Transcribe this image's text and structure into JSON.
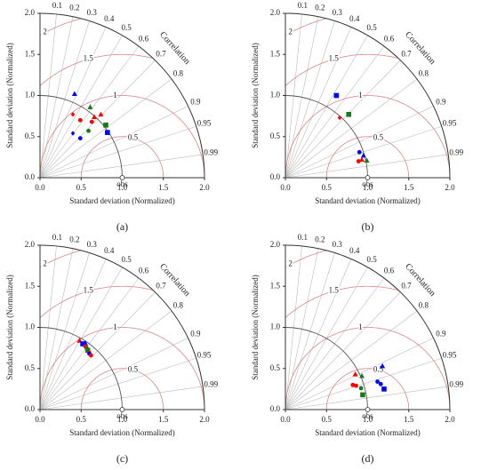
{
  "chart_data": [
    {
      "type": "taylor",
      "caption": "(a)",
      "xlabel": "Standard deviation (Normalized)",
      "ylabel": "Standard deviation (Normalized)",
      "xlim": [
        0,
        2
      ],
      "ylim": [
        0,
        2
      ],
      "xticks": [
        {
          "value": 0,
          "label": "0.0"
        },
        0.5,
        {
          "value": 1,
          "label": "1.0"
        },
        1.5,
        {
          "value": 2,
          "label": "2.0"
        }
      ],
      "yticks": [
        {
          "value": 0,
          "label": "0.0"
        },
        0.5,
        {
          "value": 1,
          "label": "1.0"
        },
        1.5,
        {
          "value": 2,
          "label": "2.0"
        }
      ],
      "correlation_label": "Correlation",
      "correlations": [
        0.1,
        0.2,
        0.3,
        0.4,
        0.5,
        0.6,
        0.7,
        0.8,
        0.9,
        0.95,
        0.99
      ],
      "rms_levels": [
        0.5,
        1,
        1.5,
        2
      ],
      "reference": {
        "value": 1,
        "label": "obs"
      },
      "points": [
        {
          "x": 0.42,
          "y": 1.02,
          "marker": "triangle",
          "color": "#0000ff"
        },
        {
          "x": 0.61,
          "y": 0.86,
          "marker": "triangle",
          "color": "#1a7a1a"
        },
        {
          "x": 0.4,
          "y": 0.77,
          "marker": "diamond",
          "color": "#ff0000"
        },
        {
          "x": 0.49,
          "y": 0.7,
          "marker": "circle",
          "color": "#ff0000"
        },
        {
          "x": 0.66,
          "y": 0.74,
          "marker": "triangle",
          "color": "#ff0000"
        },
        {
          "x": 0.74,
          "y": 0.77,
          "marker": "triangle",
          "color": "#ff0000"
        },
        {
          "x": 0.63,
          "y": 0.68,
          "marker": "circle",
          "color": "#ff0000"
        },
        {
          "x": 0.8,
          "y": 0.64,
          "marker": "square",
          "color": "#1a7a1a"
        },
        {
          "x": 0.82,
          "y": 0.55,
          "marker": "square",
          "color": "#0000ff"
        },
        {
          "x": 0.59,
          "y": 0.57,
          "marker": "circle",
          "color": "#1a7a1a"
        },
        {
          "x": 0.4,
          "y": 0.54,
          "marker": "diamond",
          "color": "#0000ff"
        },
        {
          "x": 0.49,
          "y": 0.48,
          "marker": "circle",
          "color": "#0000ff"
        }
      ]
    },
    {
      "type": "taylor",
      "caption": "(b)",
      "xlabel": "Standard deviation (Normalized)",
      "ylabel": "Standard deviation (Normalized)",
      "xlim": [
        0,
        2
      ],
      "ylim": [
        0,
        2
      ],
      "xticks": [
        {
          "value": 0,
          "label": "0.0"
        },
        0.5,
        {
          "value": 1,
          "label": "1.0"
        },
        1.5,
        {
          "value": 2,
          "label": "2.0"
        }
      ],
      "yticks": [
        {
          "value": 0,
          "label": "0.0"
        },
        0.5,
        {
          "value": 1,
          "label": "1.0"
        },
        1.5,
        {
          "value": 2,
          "label": "2.0"
        }
      ],
      "correlation_label": "Correlation",
      "correlations": [
        0.1,
        0.2,
        0.3,
        0.4,
        0.5,
        0.6,
        0.7,
        0.8,
        0.9,
        0.95,
        0.99
      ],
      "rms_levels": [
        0.5,
        1,
        1.5,
        2
      ],
      "reference": {
        "value": 1,
        "label": "obs"
      },
      "points": [
        {
          "x": 0.62,
          "y": 1.0,
          "marker": "square",
          "color": "#0000ff"
        },
        {
          "x": 0.66,
          "y": 0.73,
          "marker": "diamond",
          "color": "#ff0000"
        },
        {
          "x": 0.77,
          "y": 0.77,
          "marker": "square",
          "color": "#1a7a1a"
        },
        {
          "x": 0.9,
          "y": 0.31,
          "marker": "circle",
          "color": "#0000ff"
        },
        {
          "x": 0.95,
          "y": 0.27,
          "marker": "triangle",
          "color": "#0000ff"
        },
        {
          "x": 0.99,
          "y": 0.21,
          "marker": "triangle",
          "color": "#1a7a1a"
        },
        {
          "x": 0.89,
          "y": 0.2,
          "marker": "circle",
          "color": "#ff0000"
        },
        {
          "x": 0.93,
          "y": 0.22,
          "marker": "triangle",
          "color": "#ff0000"
        }
      ]
    },
    {
      "type": "taylor",
      "caption": "(c)",
      "xlabel": "Standard deviation (Normalized)",
      "ylabel": "Standard deviation (Normalized)",
      "xlim": [
        0,
        2
      ],
      "ylim": [
        0,
        2
      ],
      "xticks": [
        {
          "value": 0,
          "label": "0.0"
        },
        0.5,
        {
          "value": 1,
          "label": "1.0"
        },
        1.5,
        {
          "value": 2,
          "label": "2.0"
        }
      ],
      "yticks": [
        {
          "value": 0,
          "label": "0.0"
        },
        0.5,
        {
          "value": 1,
          "label": "1.0"
        },
        1.5,
        {
          "value": 2,
          "label": "2.0"
        }
      ],
      "correlation_label": "Correlation",
      "correlations": [
        0.1,
        0.2,
        0.3,
        0.4,
        0.5,
        0.6,
        0.7,
        0.8,
        0.9,
        0.95,
        0.99
      ],
      "rms_levels": [
        0.5,
        1,
        1.5,
        2
      ],
      "reference": {
        "value": 1,
        "label": "obs"
      },
      "points": [
        {
          "x": 0.48,
          "y": 0.84,
          "marker": "triangle",
          "color": "#ff0000"
        },
        {
          "x": 0.52,
          "y": 0.8,
          "marker": "square",
          "color": "#0000ff"
        },
        {
          "x": 0.55,
          "y": 0.81,
          "marker": "triangle",
          "color": "#0000ff"
        },
        {
          "x": 0.55,
          "y": 0.77,
          "marker": "circle",
          "color": "#ff0000"
        },
        {
          "x": 0.57,
          "y": 0.76,
          "marker": "triangle",
          "color": "#1a7a1a"
        },
        {
          "x": 0.58,
          "y": 0.72,
          "marker": "square",
          "color": "#1a7a1a"
        },
        {
          "x": 0.6,
          "y": 0.7,
          "marker": "diamond",
          "color": "#ff0000"
        },
        {
          "x": 0.6,
          "y": 0.68,
          "marker": "circle",
          "color": "#0000ff"
        },
        {
          "x": 0.62,
          "y": 0.66,
          "marker": "circle",
          "color": "#ff0000"
        }
      ]
    },
    {
      "type": "taylor",
      "caption": "(d)",
      "xlabel": "Standard deviation (Normalized)",
      "ylabel": "Standard deviation (Normalized)",
      "xlim": [
        0,
        2
      ],
      "ylim": [
        0,
        2
      ],
      "xticks": [
        {
          "value": 0,
          "label": "0.0"
        },
        0.5,
        {
          "value": 1,
          "label": "1.0"
        },
        1.5,
        {
          "value": 2,
          "label": "2.0"
        }
      ],
      "yticks": [
        {
          "value": 0,
          "label": "0.0"
        },
        0.5,
        {
          "value": 1,
          "label": "1.0"
        },
        1.5,
        {
          "value": 2,
          "label": "2.0"
        }
      ],
      "correlation_label": "Correlation",
      "correlations": [
        0.1,
        0.2,
        0.3,
        0.4,
        0.5,
        0.6,
        0.7,
        0.8,
        0.9,
        0.95,
        0.99
      ],
      "rms_levels": [
        0.5,
        1,
        1.5,
        2
      ],
      "reference": {
        "value": 1,
        "label": "obs"
      },
      "points": [
        {
          "x": 0.85,
          "y": 0.43,
          "marker": "triangle",
          "color": "#ff0000"
        },
        {
          "x": 0.93,
          "y": 0.41,
          "marker": "triangle",
          "color": "#1a7a1a"
        },
        {
          "x": 1.18,
          "y": 0.53,
          "marker": "triangle",
          "color": "#0000ff"
        },
        {
          "x": 0.82,
          "y": 0.3,
          "marker": "circle",
          "color": "#ff0000"
        },
        {
          "x": 0.86,
          "y": 0.29,
          "marker": "circle",
          "color": "#ff0000"
        },
        {
          "x": 1.12,
          "y": 0.34,
          "marker": "circle",
          "color": "#0000ff"
        },
        {
          "x": 1.16,
          "y": 0.31,
          "marker": "circle",
          "color": "#0000ff"
        },
        {
          "x": 1.2,
          "y": 0.25,
          "marker": "square",
          "color": "#0000ff"
        },
        {
          "x": 0.92,
          "y": 0.26,
          "marker": "circle",
          "color": "#1a7a1a"
        },
        {
          "x": 0.94,
          "y": 0.18,
          "marker": "square",
          "color": "#1a7a1a"
        }
      ]
    }
  ]
}
